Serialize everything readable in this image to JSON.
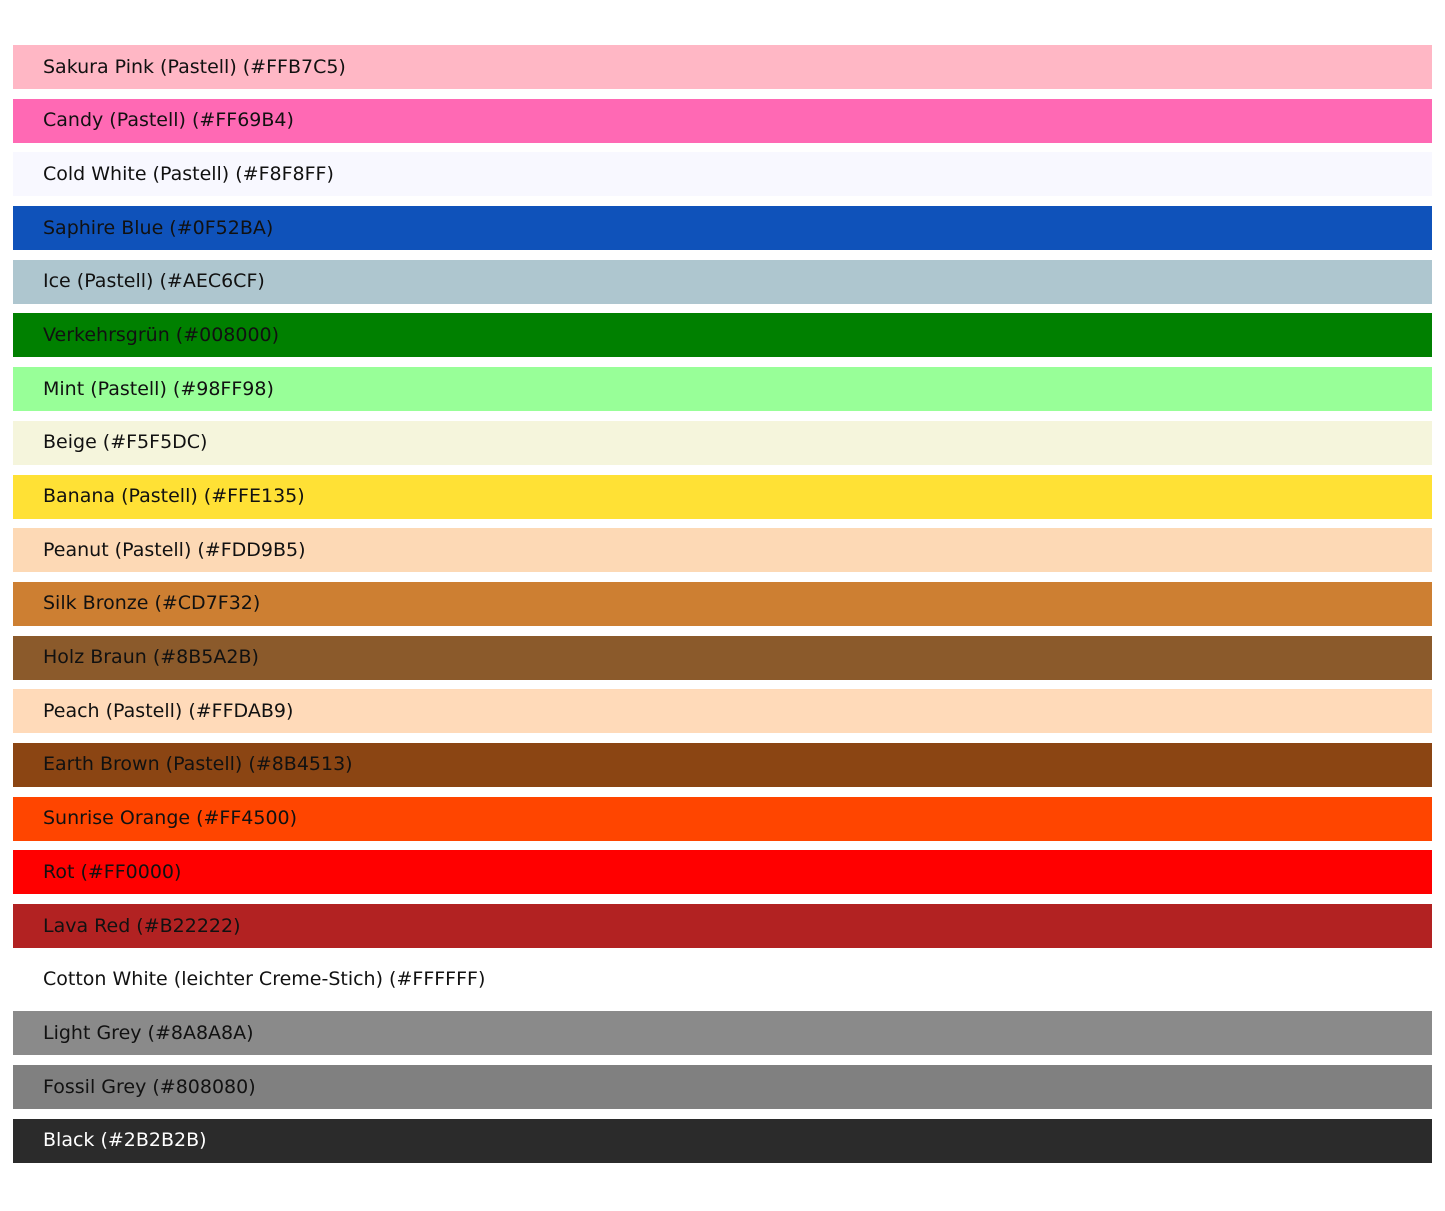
{
  "page": {
    "background": "#FFFFFF",
    "default_text_color": "#111111"
  },
  "palette": {
    "rows": [
      {
        "label": "Sakura Pink (Pastell) (#FFB7C5)",
        "color": "#FFB7C5",
        "text_color": "#111111"
      },
      {
        "label": "Candy (Pastell) (#FF69B4)",
        "color": "#FF69B4",
        "text_color": "#111111"
      },
      {
        "label": "Cold White (Pastell) (#F8F8FF)",
        "color": "#F8F8FF",
        "text_color": "#111111"
      },
      {
        "label": "Saphire Blue (#0F52BA)",
        "color": "#0F52BA",
        "text_color": "#111111"
      },
      {
        "label": "Ice (Pastell) (#AEC6CF)",
        "color": "#AEC6CF",
        "text_color": "#111111"
      },
      {
        "label": "Verkehrsgrün (#008000)",
        "color": "#008000",
        "text_color": "#111111"
      },
      {
        "label": "Mint (Pastell) (#98FF98)",
        "color": "#98FF98",
        "text_color": "#111111"
      },
      {
        "label": "Beige (#F5F5DC)",
        "color": "#F5F5DC",
        "text_color": "#111111"
      },
      {
        "label": "Banana (Pastell) (#FFE135)",
        "color": "#FFE135",
        "text_color": "#111111"
      },
      {
        "label": "Peanut (Pastell) (#FDD9B5)",
        "color": "#FDD9B5",
        "text_color": "#111111"
      },
      {
        "label": "Silk Bronze (#CD7F32)",
        "color": "#CD7F32",
        "text_color": "#111111"
      },
      {
        "label": "Holz Braun (#8B5A2B)",
        "color": "#8B5A2B",
        "text_color": "#111111"
      },
      {
        "label": "Peach (Pastell) (#FFDAB9)",
        "color": "#FFDAB9",
        "text_color": "#111111"
      },
      {
        "label": "Earth Brown (Pastell) (#8B4513)",
        "color": "#8B4513",
        "text_color": "#111111"
      },
      {
        "label": "Sunrise Orange (#FF4500)",
        "color": "#FF4500",
        "text_color": "#111111"
      },
      {
        "label": "Rot (#FF0000)",
        "color": "#FF0000",
        "text_color": "#111111"
      },
      {
        "label": "Lava Red (#B22222)",
        "color": "#B22222",
        "text_color": "#111111"
      },
      {
        "label": "Cotton White (leichter Creme-Stich) (#FFFFFF)",
        "color": "#FFFFFF",
        "text_color": "#111111"
      },
      {
        "label": "Light Grey (#8A8A8A)",
        "color": "#8A8A8A",
        "text_color": "#111111"
      },
      {
        "label": "Fossil Grey (#808080)",
        "color": "#808080",
        "text_color": "#111111"
      },
      {
        "label": "Black (#2B2B2B)",
        "color": "#2B2B2B",
        "text_color": "#FFFFFF"
      }
    ]
  }
}
